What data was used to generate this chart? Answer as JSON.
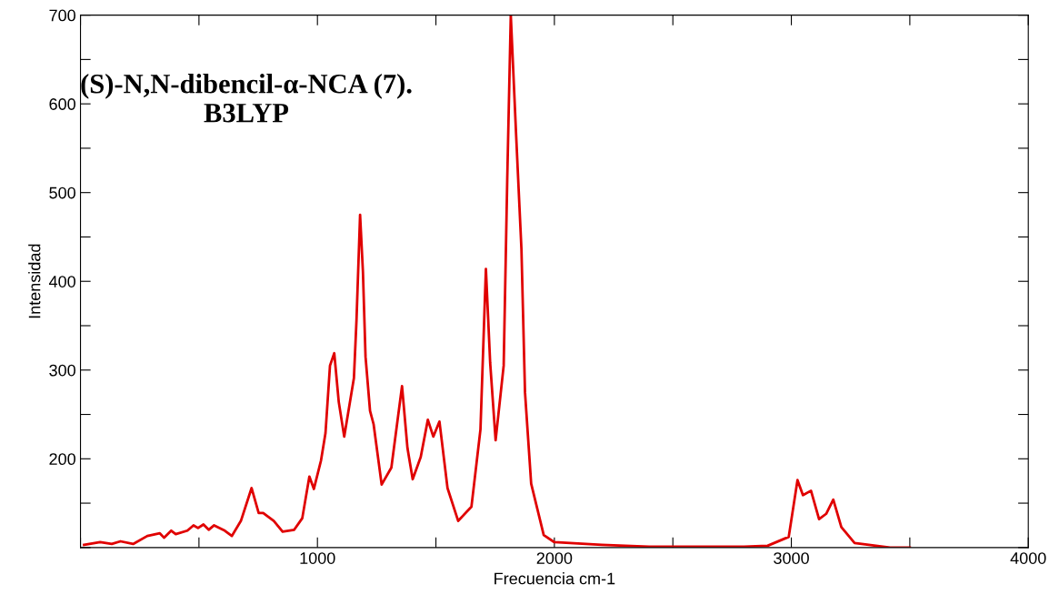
{
  "chart_data": {
    "type": "line",
    "annotations": [
      "(S)-N,N-dibencil-α-NCA (7).\nB3LYP"
    ],
    "xlabel": "Frecuencia cm-1",
    "ylabel": "Intensidad",
    "xlim": [
      0,
      4000
    ],
    "ylim": [
      100,
      700
    ],
    "xticks": [
      {
        "value": 0,
        "label": null
      },
      {
        "value": 500,
        "label": null
      },
      1000,
      {
        "value": 1500,
        "label": null
      },
      2000,
      {
        "value": 2500,
        "label": null
      },
      3000,
      {
        "value": 3500,
        "label": null
      },
      4000
    ],
    "yticks": [
      {
        "value": 100,
        "label": null
      },
      {
        "value": 150,
        "label": null
      },
      200,
      {
        "value": 250,
        "label": null
      },
      300,
      {
        "value": 350,
        "label": null
      },
      400,
      {
        "value": 450,
        "label": null
      },
      500,
      {
        "value": 550,
        "label": null
      },
      600,
      {
        "value": 650,
        "label": null
      },
      700
    ],
    "grid": false,
    "marker": "none",
    "line_style": "solid",
    "series": [
      {
        "color": "#e00000",
        "x": [
          15,
          83,
          132,
          169,
          222,
          282,
          335,
          353,
          383,
          402,
          451,
          477,
          496,
          519,
          541,
          564,
          609,
          639,
          677,
          722,
          752,
          771,
          816,
          853,
          902,
          936,
          966,
          985,
          1015,
          1034,
          1053,
          1071,
          1090,
          1113,
          1154,
          1165,
          1180,
          1192,
          1203,
          1222,
          1237,
          1271,
          1312,
          1357,
          1380,
          1402,
          1436,
          1466,
          1489,
          1515,
          1549,
          1594,
          1650,
          1688,
          1711,
          1729,
          1752,
          1786,
          1801,
          1816,
          1838,
          1861,
          1876,
          1902,
          1955,
          2000,
          2200,
          2400,
          2800,
          2900,
          2989,
          3026,
          3049,
          3083,
          3117,
          3147,
          3177,
          3211,
          3267,
          3417,
          3500
        ],
        "values": [
          103,
          106,
          104,
          107,
          104,
          113,
          116,
          111,
          119,
          115,
          119,
          125,
          122,
          126,
          120,
          125,
          119,
          113,
          130,
          167,
          139,
          139,
          130,
          118,
          120,
          133,
          180,
          166,
          198,
          229,
          305,
          319,
          264,
          225,
          291,
          357,
          475,
          411,
          315,
          254,
          239,
          171,
          190,
          282,
          212,
          177,
          202,
          244,
          225,
          242,
          167,
          130,
          146,
          233,
          414,
          308,
          221,
          305,
          514,
          700,
          568,
          436,
          275,
          172,
          114,
          106,
          103,
          101,
          101,
          102,
          112,
          176,
          159,
          164,
          132,
          138,
          154,
          123,
          105,
          100,
          100
        ]
      }
    ]
  }
}
